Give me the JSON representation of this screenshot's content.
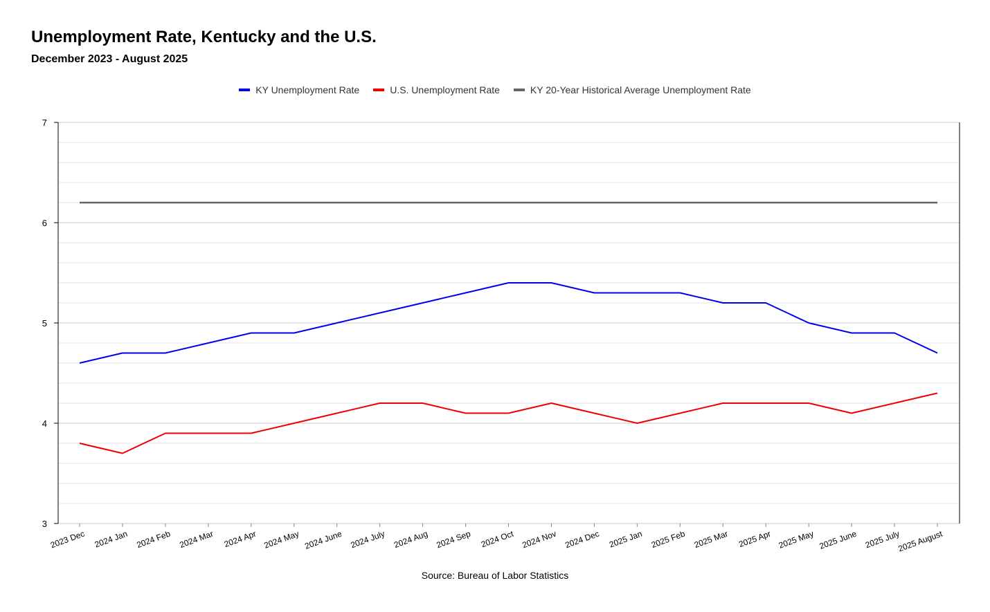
{
  "chart_data": {
    "type": "line",
    "title": "Unemployment Rate, Kentucky and the U.S.",
    "subtitle": "December 2023 - August 2025",
    "source": "Source: Bureau of Labor Statistics",
    "categories": [
      "2023 Dec",
      "2024 Jan",
      "2024 Feb",
      "2024 Mar",
      "2024 Apr",
      "2024 May",
      "2024 June",
      "2024 July",
      "2024 Aug",
      "2024 Sep",
      "2024 Oct",
      "2024 Nov",
      "2024 Dec",
      "2025 Jan",
      "2025 Feb",
      "2025 Mar",
      "2025 Apr",
      "2025 May",
      "2025 June",
      "2025 July",
      "2025 August"
    ],
    "series": [
      {
        "name": "KY Unemployment Rate",
        "color": "#0000ee",
        "values": [
          4.6,
          4.7,
          4.7,
          4.8,
          4.9,
          4.9,
          5.0,
          5.1,
          5.2,
          5.3,
          5.4,
          5.4,
          5.3,
          5.3,
          5.3,
          5.2,
          5.2,
          5.0,
          4.9,
          4.9,
          4.7
        ]
      },
      {
        "name": "U.S. Unemployment Rate",
        "color": "#ee0000",
        "values": [
          3.8,
          3.7,
          3.9,
          3.9,
          3.9,
          4.0,
          4.1,
          4.2,
          4.2,
          4.1,
          4.1,
          4.2,
          4.1,
          4.0,
          4.1,
          4.2,
          4.2,
          4.2,
          4.1,
          4.2,
          4.3
        ]
      },
      {
        "name": "KY 20-Year Historical Average Unemployment Rate",
        "color": "#666666",
        "values": [
          6.2,
          6.2,
          6.2,
          6.2,
          6.2,
          6.2,
          6.2,
          6.2,
          6.2,
          6.2,
          6.2,
          6.2,
          6.2,
          6.2,
          6.2,
          6.2,
          6.2,
          6.2,
          6.2,
          6.2,
          6.2
        ]
      }
    ],
    "ylim": [
      3,
      7
    ],
    "yticks": [
      3,
      4,
      5,
      6,
      7
    ],
    "grid": true,
    "legend_position": "top-center"
  }
}
